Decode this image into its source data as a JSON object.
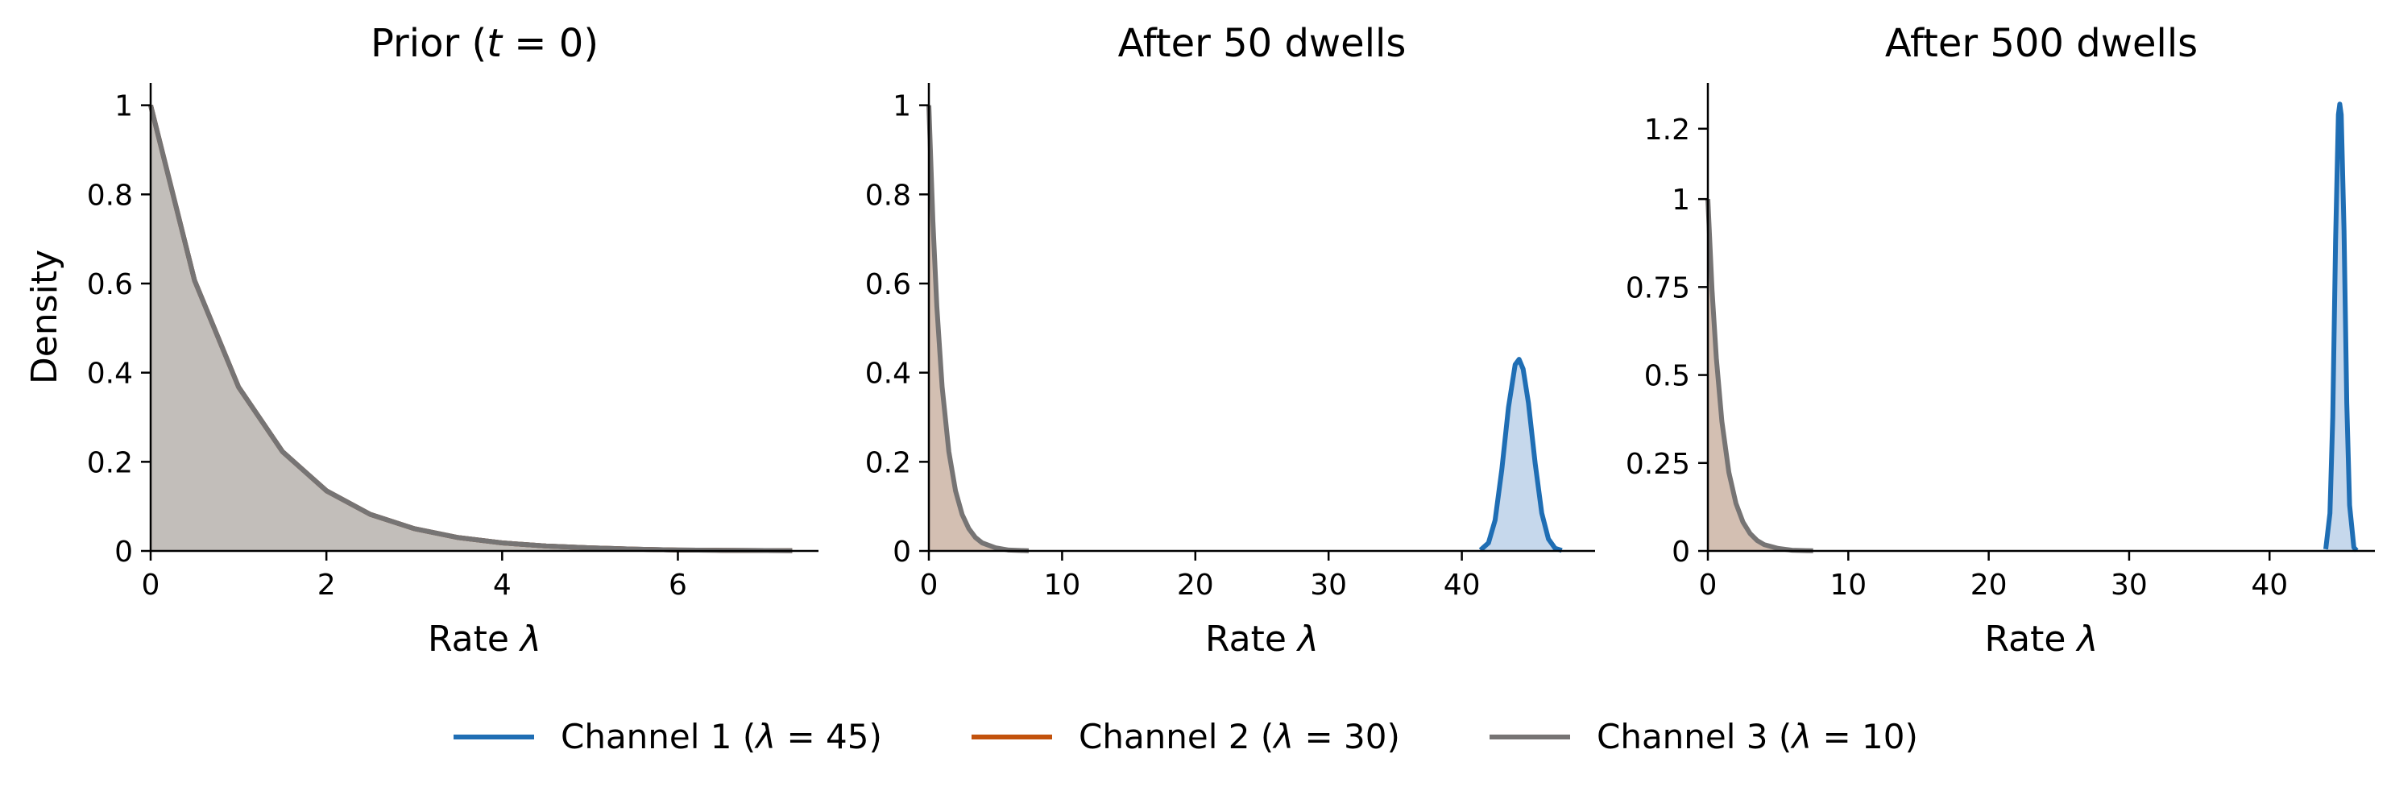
{
  "chart_data": [
    {
      "type": "area",
      "title": "Prior (t = 0)",
      "title_parts": [
        "Prior (",
        "t",
        " = 0)"
      ],
      "xlabel": "Rate λ",
      "ylabel": "Density",
      "xlim": [
        0,
        7.6
      ],
      "ylim": [
        0,
        1.05
      ],
      "xticks": [
        0,
        2,
        4,
        6
      ],
      "yticks": [
        0,
        0.2,
        0.4,
        0.6,
        0.8,
        1
      ],
      "ytick_labels": [
        "0",
        "0.2",
        "0.4",
        "0.6",
        "0.8",
        "1"
      ],
      "grid": false,
      "series": [
        {
          "name": "Channel 1 (λ = 45)",
          "color": "#1f6eb4",
          "fill": "#a9a39d",
          "x": [
            0,
            0.5,
            1,
            1.5,
            2,
            2.5,
            3,
            3.5,
            4,
            4.5,
            5,
            5.5,
            6,
            6.5,
            7,
            7.3
          ],
          "y": [
            1,
            0.607,
            0.368,
            0.223,
            0.135,
            0.082,
            0.05,
            0.03,
            0.018,
            0.011,
            0.007,
            0.004,
            0.002,
            0.0015,
            0.0009,
            0.0007
          ]
        },
        {
          "name": "Channel 2 (λ = 30)",
          "color": "#c2520c",
          "fill": "#a9a39d",
          "x": [
            0,
            0.5,
            1,
            1.5,
            2,
            2.5,
            3,
            3.5,
            4,
            4.5,
            5,
            5.5,
            6,
            6.5,
            7,
            7.3
          ],
          "y": [
            1,
            0.607,
            0.368,
            0.223,
            0.135,
            0.082,
            0.05,
            0.03,
            0.018,
            0.011,
            0.007,
            0.004,
            0.002,
            0.0015,
            0.0009,
            0.0007
          ]
        },
        {
          "name": "Channel 3 (λ = 10)",
          "color": "#767474",
          "fill": "#a9a39d",
          "x": [
            0,
            0.5,
            1,
            1.5,
            2,
            2.5,
            3,
            3.5,
            4,
            4.5,
            5,
            5.5,
            6,
            6.5,
            7,
            7.3
          ],
          "y": [
            1,
            0.607,
            0.368,
            0.223,
            0.135,
            0.082,
            0.05,
            0.03,
            0.018,
            0.011,
            0.007,
            0.004,
            0.002,
            0.0015,
            0.0009,
            0.0007
          ]
        }
      ]
    },
    {
      "type": "area",
      "title": "After 50 dwells",
      "xlabel": "Rate λ",
      "ylabel": "",
      "xlim": [
        0,
        50
      ],
      "ylim": [
        0,
        1.05
      ],
      "xticks": [
        0,
        10,
        20,
        30,
        40
      ],
      "yticks": [
        0,
        0.2,
        0.4,
        0.6,
        0.8,
        1
      ],
      "ytick_labels": [
        "0",
        "0.2",
        "0.4",
        "0.6",
        "0.8",
        "1"
      ],
      "grid": false,
      "series": [
        {
          "name": "Channel 3 (λ = 10)",
          "color": "#767474",
          "fill": "#d3bfb2",
          "x": [
            0,
            0.3,
            0.6,
            1,
            1.5,
            2,
            2.5,
            3,
            3.5,
            4,
            5,
            6,
            7,
            7.5
          ],
          "y": [
            1,
            0.741,
            0.549,
            0.368,
            0.223,
            0.135,
            0.082,
            0.05,
            0.03,
            0.018,
            0.007,
            0.002,
            0.0009,
            0.0006
          ]
        },
        {
          "name": "Channel 1 (λ = 45)",
          "color": "#1f6eb4",
          "fill": "#c6d8ec",
          "x": [
            41.4,
            42,
            42.5,
            43,
            43.5,
            44,
            44.3,
            44.6,
            45,
            45.5,
            46,
            46.5,
            47,
            47.5
          ],
          "y": [
            0.002,
            0.018,
            0.069,
            0.182,
            0.322,
            0.418,
            0.43,
            0.408,
            0.332,
            0.197,
            0.085,
            0.027,
            0.006,
            0.001
          ]
        }
      ]
    },
    {
      "type": "area",
      "title": "After 500 dwells",
      "xlabel": "Rate λ",
      "ylabel": "",
      "xlim": [
        0,
        47.5
      ],
      "ylim": [
        0,
        1.33
      ],
      "xticks": [
        0,
        10,
        20,
        30,
        40
      ],
      "yticks": [
        0,
        0.25,
        0.5,
        0.75,
        1,
        1.2
      ],
      "ytick_labels": [
        "0",
        "0.25",
        "0.5",
        "0.75",
        "1",
        "1.2"
      ],
      "grid": false,
      "series": [
        {
          "name": "Channel 3 (λ = 10)",
          "color": "#767474",
          "fill": "#d3bfb2",
          "x": [
            0,
            0.3,
            0.6,
            1,
            1.5,
            2,
            2.5,
            3,
            3.5,
            4,
            5,
            6,
            7,
            7.5
          ],
          "y": [
            1,
            0.741,
            0.549,
            0.368,
            0.223,
            0.135,
            0.082,
            0.05,
            0.03,
            0.018,
            0.007,
            0.002,
            0.0009,
            0.0006
          ]
        },
        {
          "name": "Channel 1 (λ = 45)",
          "color": "#1f6eb4",
          "fill": "#c6d8ec",
          "x": [
            44,
            44.3,
            44.5,
            44.7,
            44.9,
            45,
            45.1,
            45.3,
            45.5,
            45.7,
            46,
            46.2
          ],
          "y": [
            0.005,
            0.107,
            0.38,
            0.88,
            1.24,
            1.27,
            1.24,
            0.91,
            0.42,
            0.13,
            0.01,
            0.001
          ]
        }
      ]
    }
  ],
  "legend": {
    "placement": "bottom",
    "entries": [
      {
        "label": "Channel 1 (λ = 45)",
        "parts": [
          "Channel 1 (",
          "λ",
          " = 45)"
        ],
        "color": "#1f6eb4"
      },
      {
        "label": "Channel 2 (λ = 30)",
        "parts": [
          "Channel 2 (",
          "λ",
          " = 30)"
        ],
        "color": "#c2520c"
      },
      {
        "label": "Channel 3 (λ = 10)",
        "parts": [
          "Channel 3 (",
          "λ",
          " = 10)"
        ],
        "color": "#767474"
      }
    ]
  }
}
